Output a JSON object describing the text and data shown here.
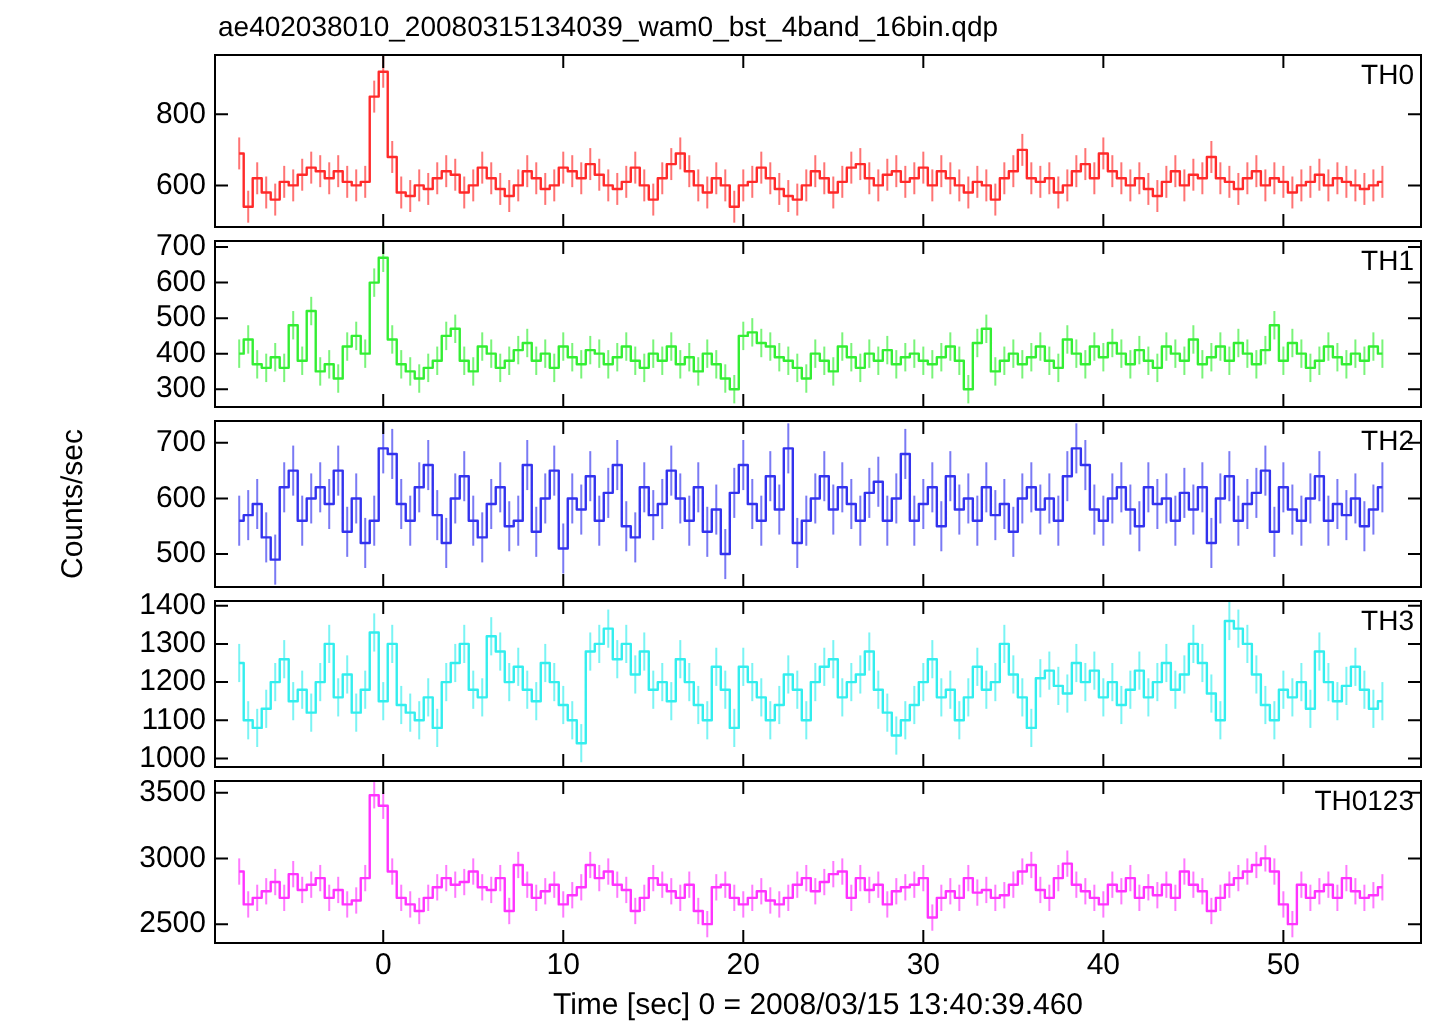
{
  "chart_data": [
    {
      "type": "step",
      "title": "ae402038010_20080315134039_wam0_bst_4band_16bin.qdp",
      "annotations": [
        "TH0"
      ],
      "color": "#ff2a2a",
      "marker": "none",
      "tick_labels": "y",
      "xlim": [
        -9.4,
        57.7
      ],
      "xticks": [
        0,
        10,
        20,
        30,
        40,
        50
      ],
      "ylim": [
        480,
        970
      ],
      "yticks": [
        600,
        800
      ],
      "x": [
        -8,
        -7.5,
        -7,
        -6.5,
        -6,
        -5.5,
        -5,
        -4.5,
        -4,
        -3.5,
        -3,
        -2.5,
        -2,
        -1.5,
        -1,
        -0.5,
        0,
        0.5,
        1,
        1.5,
        2,
        2.5,
        3,
        3.5,
        4,
        4.5,
        5,
        5.5,
        6,
        6.5,
        7,
        7.5,
        8,
        8.5,
        9,
        9.5,
        10,
        10.5,
        11,
        11.5,
        12,
        12.5,
        13,
        13.5,
        14,
        14.5,
        15,
        15.5,
        16,
        16.5,
        17,
        17.5,
        18,
        18.5,
        19,
        19.5,
        20,
        20.5,
        21,
        21.5,
        22,
        22.5,
        23,
        23.5,
        24,
        24.5,
        25,
        25.5,
        26,
        26.5,
        27,
        27.5,
        28,
        28.5,
        29,
        29.5,
        30,
        30.5,
        31,
        31.5,
        32,
        32.5,
        33,
        33.5,
        34,
        34.5,
        35,
        35.5,
        36,
        36.5,
        37,
        37.5,
        38,
        38.5,
        39,
        39.5,
        40,
        40.5,
        41,
        41.5,
        42,
        42.5,
        43,
        43.5,
        44,
        44.5,
        45,
        45.5,
        46,
        46.5,
        47,
        47.5,
        48,
        48.5,
        49,
        49.5,
        50,
        50.5,
        51,
        51.5,
        52,
        52.5,
        53,
        53.5,
        54,
        54.5,
        55,
        55.5
      ],
      "values": [
        690,
        540,
        620,
        580,
        560,
        610,
        600,
        630,
        650,
        640,
        620,
        640,
        610,
        600,
        610,
        850,
        920,
        680,
        580,
        570,
        600,
        590,
        620,
        640,
        630,
        580,
        600,
        650,
        620,
        590,
        570,
        600,
        640,
        620,
        590,
        600,
        650,
        640,
        620,
        660,
        630,
        600,
        590,
        610,
        650,
        600,
        560,
        620,
        660,
        690,
        640,
        600,
        580,
        620,
        600,
        540,
        600,
        610,
        650,
        620,
        590,
        570,
        560,
        600,
        640,
        620,
        580,
        610,
        650,
        660,
        620,
        600,
        630,
        640,
        610,
        620,
        650,
        600,
        640,
        620,
        600,
        580,
        610,
        600,
        560,
        620,
        640,
        700,
        620,
        610,
        620,
        580,
        600,
        640,
        660,
        620,
        690,
        640,
        620,
        600,
        620,
        590,
        570,
        610,
        640,
        600,
        630,
        620,
        680,
        620,
        610,
        590,
        620,
        640,
        600,
        620,
        610,
        580,
        600,
        610,
        630,
        600,
        620,
        610,
        600,
        590,
        600,
        610
      ],
      "errors": [
        45,
        45,
        45,
        45,
        45,
        45,
        45,
        45,
        45,
        45,
        45,
        45,
        45,
        45,
        45,
        45,
        45,
        45,
        45,
        45,
        45,
        45,
        45,
        45,
        45,
        45,
        45,
        45,
        45,
        45,
        45,
        45,
        45,
        45,
        45,
        45,
        45,
        45,
        45,
        45,
        45,
        45,
        45,
        45,
        45,
        45,
        45,
        45,
        45,
        45,
        45,
        45,
        45,
        45,
        45,
        45,
        45,
        45,
        45,
        45,
        45,
        45,
        45,
        45,
        45,
        45,
        45,
        45,
        45,
        45,
        45,
        45,
        45,
        45,
        45,
        45,
        45,
        45,
        45,
        45,
        45,
        45,
        45,
        45,
        45,
        45,
        45,
        45,
        45,
        45,
        45,
        45,
        45,
        45,
        45,
        45,
        45,
        45,
        45,
        45,
        45,
        45,
        45,
        45,
        45,
        45,
        45,
        45,
        45,
        45,
        45,
        45,
        45,
        45,
        45,
        45,
        45,
        45,
        45,
        45,
        45,
        45,
        45,
        45,
        45,
        45,
        45,
        45
      ]
    },
    {
      "type": "step",
      "annotations": [
        "TH1"
      ],
      "color": "#33ee33",
      "marker": "none",
      "tick_labels": "y",
      "xlim": [
        -9.4,
        57.7
      ],
      "xticks": [
        0,
        10,
        20,
        30,
        40,
        50
      ],
      "ylim": [
        247,
        720
      ],
      "yticks": [
        300,
        400,
        500,
        600,
        700
      ],
      "x": [
        -8,
        -7.5,
        -7,
        -6.5,
        -6,
        -5.5,
        -5,
        -4.5,
        -4,
        -3.5,
        -3,
        -2.5,
        -2,
        -1.5,
        -1,
        -0.5,
        0,
        0.5,
        1,
        1.5,
        2,
        2.5,
        3,
        3.5,
        4,
        4.5,
        5,
        5.5,
        6,
        6.5,
        7,
        7.5,
        8,
        8.5,
        9,
        9.5,
        10,
        10.5,
        11,
        11.5,
        12,
        12.5,
        13,
        13.5,
        14,
        14.5,
        15,
        15.5,
        16,
        16.5,
        17,
        17.5,
        18,
        18.5,
        19,
        19.5,
        20,
        20.5,
        21,
        21.5,
        22,
        22.5,
        23,
        23.5,
        24,
        24.5,
        25,
        25.5,
        26,
        26.5,
        27,
        27.5,
        28,
        28.5,
        29,
        29.5,
        30,
        30.5,
        31,
        31.5,
        32,
        32.5,
        33,
        33.5,
        34,
        34.5,
        35,
        35.5,
        36,
        36.5,
        37,
        37.5,
        38,
        38.5,
        39,
        39.5,
        40,
        40.5,
        41,
        41.5,
        42,
        42.5,
        43,
        43.5,
        44,
        44.5,
        45,
        45.5,
        46,
        46.5,
        47,
        47.5,
        48,
        48.5,
        49,
        49.5,
        50,
        50.5,
        51,
        51.5,
        52,
        52.5,
        53,
        53.5,
        54,
        54.5,
        55,
        55.5
      ],
      "values": [
        400,
        440,
        370,
        360,
        390,
        360,
        480,
        380,
        520,
        350,
        370,
        330,
        420,
        450,
        400,
        600,
        670,
        440,
        370,
        350,
        330,
        360,
        380,
        450,
        470,
        380,
        350,
        420,
        400,
        360,
        380,
        410,
        430,
        380,
        400,
        360,
        420,
        390,
        370,
        410,
        400,
        370,
        390,
        420,
        380,
        360,
        400,
        380,
        420,
        370,
        390,
        350,
        400,
        370,
        330,
        300,
        450,
        460,
        430,
        420,
        390,
        380,
        360,
        330,
        400,
        380,
        350,
        420,
        390,
        360,
        400,
        380,
        410,
        370,
        390,
        400,
        380,
        370,
        390,
        420,
        380,
        300,
        430,
        470,
        350,
        380,
        400,
        370,
        390,
        420,
        380,
        360,
        440,
        400,
        370,
        420,
        390,
        430,
        400,
        370,
        410,
        380,
        360,
        420,
        400,
        380,
        440,
        370,
        390,
        420,
        380,
        430,
        400,
        370,
        410,
        480,
        380,
        430,
        400,
        360,
        380,
        420,
        390,
        370,
        400,
        380,
        420,
        400
      ],
      "errors": [
        40,
        40,
        40,
        40,
        40,
        40,
        40,
        40,
        40,
        40,
        40,
        40,
        40,
        40,
        40,
        40,
        40,
        40,
        40,
        40,
        40,
        40,
        40,
        40,
        40,
        40,
        40,
        40,
        40,
        40,
        40,
        40,
        40,
        40,
        40,
        40,
        40,
        40,
        40,
        40,
        40,
        40,
        40,
        40,
        40,
        40,
        40,
        40,
        40,
        40,
        40,
        40,
        40,
        40,
        40,
        40,
        40,
        40,
        40,
        40,
        40,
        40,
        40,
        40,
        40,
        40,
        40,
        40,
        40,
        40,
        40,
        40,
        40,
        40,
        40,
        40,
        40,
        40,
        40,
        40,
        40,
        40,
        40,
        40,
        40,
        40,
        40,
        40,
        40,
        40,
        40,
        40,
        40,
        40,
        40,
        40,
        40,
        40,
        40,
        40,
        40,
        40,
        40,
        40,
        40,
        40,
        40,
        40,
        40,
        40,
        40,
        40,
        40,
        40,
        40,
        40,
        40,
        40,
        40,
        40,
        40,
        40,
        40,
        40,
        40,
        40,
        40,
        40
      ]
    },
    {
      "type": "step",
      "annotations": [
        "TH2"
      ],
      "ylabel": "Counts/sec",
      "color": "#3333ee",
      "marker": "none",
      "tick_labels": "y",
      "xlim": [
        -9.4,
        57.7
      ],
      "xticks": [
        0,
        10,
        20,
        30,
        40,
        50
      ],
      "ylim": [
        439,
        741
      ],
      "yticks": [
        500,
        600,
        700
      ],
      "x": [
        -8,
        -7.5,
        -7,
        -6.5,
        -6,
        -5.5,
        -5,
        -4.5,
        -4,
        -3.5,
        -3,
        -2.5,
        -2,
        -1.5,
        -1,
        -0.5,
        0,
        0.5,
        1,
        1.5,
        2,
        2.5,
        3,
        3.5,
        4,
        4.5,
        5,
        5.5,
        6,
        6.5,
        7,
        7.5,
        8,
        8.5,
        9,
        9.5,
        10,
        10.5,
        11,
        11.5,
        12,
        12.5,
        13,
        13.5,
        14,
        14.5,
        15,
        15.5,
        16,
        16.5,
        17,
        17.5,
        18,
        18.5,
        19,
        19.5,
        20,
        20.5,
        21,
        21.5,
        22,
        22.5,
        23,
        23.5,
        24,
        24.5,
        25,
        25.5,
        26,
        26.5,
        27,
        27.5,
        28,
        28.5,
        29,
        29.5,
        30,
        30.5,
        31,
        31.5,
        32,
        32.5,
        33,
        33.5,
        34,
        34.5,
        35,
        35.5,
        36,
        36.5,
        37,
        37.5,
        38,
        38.5,
        39,
        39.5,
        40,
        40.5,
        41,
        41.5,
        42,
        42.5,
        43,
        43.5,
        44,
        44.5,
        45,
        45.5,
        46,
        46.5,
        47,
        47.5,
        48,
        48.5,
        49,
        49.5,
        50,
        50.5,
        51,
        51.5,
        52,
        52.5,
        53,
        53.5,
        54,
        54.5,
        55,
        55.5
      ],
      "values": [
        560,
        570,
        590,
        530,
        490,
        620,
        650,
        560,
        600,
        620,
        590,
        650,
        540,
        600,
        520,
        560,
        690,
        680,
        590,
        560,
        620,
        660,
        570,
        520,
        600,
        640,
        560,
        530,
        590,
        620,
        550,
        560,
        660,
        540,
        600,
        650,
        510,
        600,
        580,
        640,
        560,
        610,
        660,
        550,
        530,
        620,
        570,
        590,
        650,
        600,
        560,
        620,
        540,
        580,
        500,
        610,
        660,
        590,
        560,
        640,
        580,
        690,
        520,
        560,
        600,
        640,
        580,
        620,
        590,
        560,
        610,
        630,
        560,
        600,
        680,
        560,
        590,
        620,
        550,
        640,
        580,
        600,
        560,
        620,
        570,
        590,
        540,
        600,
        620,
        580,
        600,
        560,
        640,
        690,
        660,
        580,
        560,
        600,
        620,
        580,
        550,
        620,
        590,
        600,
        560,
        610,
        580,
        620,
        520,
        600,
        640,
        560,
        590,
        610,
        650,
        540,
        620,
        580,
        560,
        600,
        640,
        560,
        590,
        570,
        600,
        550,
        580,
        620
      ],
      "errors": [
        45,
        45,
        45,
        45,
        45,
        45,
        45,
        45,
        45,
        45,
        45,
        45,
        45,
        45,
        45,
        45,
        45,
        45,
        45,
        45,
        45,
        45,
        45,
        45,
        45,
        45,
        45,
        45,
        45,
        45,
        45,
        45,
        45,
        45,
        45,
        45,
        45,
        45,
        45,
        45,
        45,
        45,
        45,
        45,
        45,
        45,
        45,
        45,
        45,
        45,
        45,
        45,
        45,
        45,
        45,
        45,
        45,
        45,
        45,
        45,
        45,
        45,
        45,
        45,
        45,
        45,
        45,
        45,
        45,
        45,
        45,
        45,
        45,
        45,
        45,
        45,
        45,
        45,
        45,
        45,
        45,
        45,
        45,
        45,
        45,
        45,
        45,
        45,
        45,
        45,
        45,
        45,
        45,
        45,
        45,
        45,
        45,
        45,
        45,
        45,
        45,
        45,
        45,
        45,
        45,
        45,
        45,
        45,
        45,
        45,
        45,
        45,
        45,
        45,
        45,
        45,
        45,
        45,
        45,
        45,
        45,
        45,
        45,
        45,
        45,
        45,
        45,
        45
      ]
    },
    {
      "type": "step",
      "annotations": [
        "TH3"
      ],
      "color": "#33eeee",
      "marker": "none",
      "tick_labels": "y",
      "xlim": [
        -9.4,
        57.7
      ],
      "xticks": [
        0,
        10,
        20,
        30,
        40,
        50
      ],
      "ylim": [
        975,
        1415
      ],
      "yticks": [
        1000,
        1100,
        1200,
        1300,
        1400
      ],
      "x": [
        -8,
        -7.5,
        -7,
        -6.5,
        -6,
        -5.5,
        -5,
        -4.5,
        -4,
        -3.5,
        -3,
        -2.5,
        -2,
        -1.5,
        -1,
        -0.5,
        0,
        0.5,
        1,
        1.5,
        2,
        2.5,
        3,
        3.5,
        4,
        4.5,
        5,
        5.5,
        6,
        6.5,
        7,
        7.5,
        8,
        8.5,
        9,
        9.5,
        10,
        10.5,
        11,
        11.5,
        12,
        12.5,
        13,
        13.5,
        14,
        14.5,
        15,
        15.5,
        16,
        16.5,
        17,
        17.5,
        18,
        18.5,
        19,
        19.5,
        20,
        20.5,
        21,
        21.5,
        22,
        22.5,
        23,
        23.5,
        24,
        24.5,
        25,
        25.5,
        26,
        26.5,
        27,
        27.5,
        28,
        28.5,
        29,
        29.5,
        30,
        30.5,
        31,
        31.5,
        32,
        32.5,
        33,
        33.5,
        34,
        34.5,
        35,
        35.5,
        36,
        36.5,
        37,
        37.5,
        38,
        38.5,
        39,
        39.5,
        40,
        40.5,
        41,
        41.5,
        42,
        42.5,
        43,
        43.5,
        44,
        44.5,
        45,
        45.5,
        46,
        46.5,
        47,
        47.5,
        48,
        48.5,
        49,
        49.5,
        50,
        50.5,
        51,
        51.5,
        52,
        52.5,
        53,
        53.5,
        54,
        54.5,
        55,
        55.5
      ],
      "values": [
        1250,
        1100,
        1080,
        1130,
        1200,
        1260,
        1150,
        1180,
        1120,
        1200,
        1300,
        1160,
        1220,
        1120,
        1180,
        1330,
        1150,
        1300,
        1140,
        1120,
        1100,
        1160,
        1080,
        1200,
        1250,
        1300,
        1180,
        1160,
        1320,
        1280,
        1200,
        1240,
        1180,
        1150,
        1250,
        1200,
        1140,
        1100,
        1040,
        1280,
        1300,
        1340,
        1260,
        1300,
        1220,
        1280,
        1180,
        1200,
        1150,
        1260,
        1200,
        1140,
        1100,
        1240,
        1180,
        1080,
        1240,
        1200,
        1160,
        1100,
        1140,
        1220,
        1180,
        1100,
        1200,
        1240,
        1260,
        1160,
        1200,
        1220,
        1280,
        1180,
        1120,
        1060,
        1100,
        1140,
        1200,
        1260,
        1160,
        1180,
        1100,
        1160,
        1240,
        1180,
        1200,
        1300,
        1220,
        1160,
        1080,
        1210,
        1230,
        1190,
        1170,
        1250,
        1200,
        1230,
        1160,
        1200,
        1140,
        1180,
        1230,
        1160,
        1200,
        1250,
        1180,
        1220,
        1300,
        1250,
        1170,
        1100,
        1360,
        1340,
        1300,
        1220,
        1140,
        1100,
        1180,
        1160,
        1200,
        1130,
        1280,
        1200,
        1150,
        1190,
        1240,
        1180,
        1130,
        1150
      ],
      "errors": [
        50,
        50,
        50,
        50,
        50,
        50,
        50,
        50,
        50,
        50,
        50,
        50,
        50,
        50,
        50,
        50,
        50,
        50,
        50,
        50,
        50,
        50,
        50,
        50,
        50,
        50,
        50,
        50,
        50,
        50,
        50,
        50,
        50,
        50,
        50,
        50,
        50,
        50,
        50,
        50,
        50,
        50,
        50,
        50,
        50,
        50,
        50,
        50,
        50,
        50,
        50,
        50,
        50,
        50,
        50,
        50,
        50,
        50,
        50,
        50,
        50,
        50,
        50,
        50,
        50,
        50,
        50,
        50,
        50,
        50,
        50,
        50,
        50,
        50,
        50,
        50,
        50,
        50,
        50,
        50,
        50,
        50,
        50,
        50,
        50,
        50,
        50,
        50,
        50,
        50,
        50,
        50,
        50,
        50,
        50,
        50,
        50,
        50,
        50,
        50,
        50,
        50,
        50,
        50,
        50,
        50,
        50,
        50,
        50,
        50,
        50,
        50,
        50,
        50,
        50,
        50,
        50,
        50,
        50,
        50,
        50,
        50,
        50,
        50,
        50,
        50,
        50,
        50
      ]
    },
    {
      "type": "step",
      "annotations": [
        "TH0123"
      ],
      "xlabel": "Time [sec] 0 = 2008/03/15 13:40:39.460",
      "color": "#ff33ff",
      "marker": "none",
      "xlim": [
        -9.4,
        57.7
      ],
      "xticks": [
        0,
        10,
        20,
        30,
        40,
        50
      ],
      "ylim": [
        2349,
        3596
      ],
      "yticks": [
        2500,
        3000,
        3500
      ],
      "x": [
        -8,
        -7.5,
        -7,
        -6.5,
        -6,
        -5.5,
        -5,
        -4.5,
        -4,
        -3.5,
        -3,
        -2.5,
        -2,
        -1.5,
        -1,
        -0.5,
        0,
        0.5,
        1,
        1.5,
        2,
        2.5,
        3,
        3.5,
        4,
        4.5,
        5,
        5.5,
        6,
        6.5,
        7,
        7.5,
        8,
        8.5,
        9,
        9.5,
        10,
        10.5,
        11,
        11.5,
        12,
        12.5,
        13,
        13.5,
        14,
        14.5,
        15,
        15.5,
        16,
        16.5,
        17,
        17.5,
        18,
        18.5,
        19,
        19.5,
        20,
        20.5,
        21,
        21.5,
        22,
        22.5,
        23,
        23.5,
        24,
        24.5,
        25,
        25.5,
        26,
        26.5,
        27,
        27.5,
        28,
        28.5,
        29,
        29.5,
        30,
        30.5,
        31,
        31.5,
        32,
        32.5,
        33,
        33.5,
        34,
        34.5,
        35,
        35.5,
        36,
        36.5,
        37,
        37.5,
        38,
        38.5,
        39,
        39.5,
        40,
        40.5,
        41,
        41.5,
        42,
        42.5,
        43,
        43.5,
        44,
        44.5,
        45,
        45.5,
        46,
        46.5,
        47,
        47.5,
        48,
        48.5,
        49,
        49.5,
        50,
        50.5,
        51,
        51.5,
        52,
        52.5,
        53,
        53.5,
        54,
        54.5,
        55,
        55.5
      ],
      "values": [
        2900,
        2650,
        2700,
        2750,
        2820,
        2700,
        2880,
        2760,
        2800,
        2850,
        2700,
        2760,
        2650,
        2680,
        2850,
        3480,
        3400,
        2900,
        2700,
        2650,
        2600,
        2700,
        2780,
        2850,
        2800,
        2820,
        2900,
        2780,
        2760,
        2850,
        2600,
        2950,
        2800,
        2700,
        2750,
        2800,
        2650,
        2720,
        2780,
        2950,
        2850,
        2900,
        2800,
        2760,
        2600,
        2700,
        2850,
        2800,
        2750,
        2700,
        2800,
        2600,
        2500,
        2780,
        2800,
        2700,
        2650,
        2700,
        2750,
        2680,
        2650,
        2700,
        2800,
        2850,
        2750,
        2820,
        2880,
        2900,
        2700,
        2850,
        2760,
        2800,
        2650,
        2750,
        2780,
        2800,
        2850,
        2550,
        2700,
        2750,
        2700,
        2850,
        2740,
        2760,
        2700,
        2720,
        2800,
        2900,
        2950,
        2760,
        2700,
        2850,
        2960,
        2800,
        2750,
        2700,
        2650,
        2800,
        2750,
        2850,
        2700,
        2780,
        2720,
        2800,
        2700,
        2900,
        2800,
        2750,
        2600,
        2700,
        2800,
        2850,
        2900,
        2950,
        3000,
        2900,
        2650,
        2500,
        2800,
        2700,
        2750,
        2800,
        2700,
        2850,
        2750,
        2700,
        2720,
        2780
      ],
      "errors": [
        100,
        100,
        100,
        100,
        100,
        100,
        100,
        100,
        100,
        100,
        100,
        100,
        100,
        100,
        100,
        100,
        100,
        100,
        100,
        100,
        100,
        100,
        100,
        100,
        100,
        100,
        100,
        100,
        100,
        100,
        100,
        100,
        100,
        100,
        100,
        100,
        100,
        100,
        100,
        100,
        100,
        100,
        100,
        100,
        100,
        100,
        100,
        100,
        100,
        100,
        100,
        100,
        100,
        100,
        100,
        100,
        100,
        100,
        100,
        100,
        100,
        100,
        100,
        100,
        100,
        100,
        100,
        100,
        100,
        100,
        100,
        100,
        100,
        100,
        100,
        100,
        100,
        100,
        100,
        100,
        100,
        100,
        100,
        100,
        100,
        100,
        100,
        100,
        100,
        100,
        100,
        100,
        100,
        100,
        100,
        100,
        100,
        100,
        100,
        100,
        100,
        100,
        100,
        100,
        100,
        100,
        100,
        100,
        100,
        100,
        100,
        100,
        100,
        100,
        100,
        100,
        100,
        100,
        100,
        100,
        100,
        100,
        100,
        100,
        100,
        100,
        100,
        100
      ]
    }
  ]
}
